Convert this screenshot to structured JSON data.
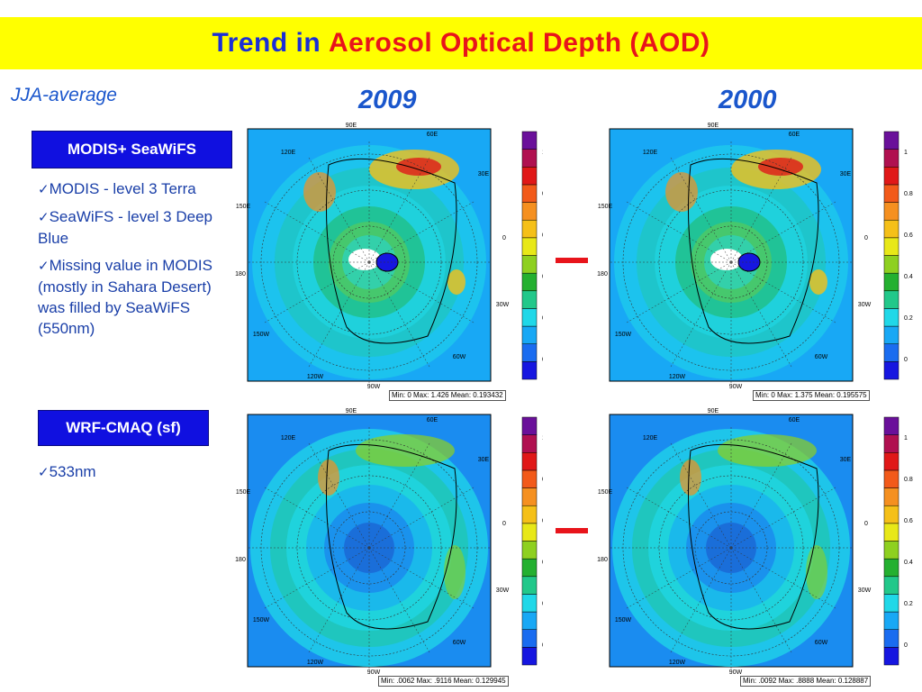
{
  "title": {
    "part1": "Trend in",
    "part2": "Aerosol Optical Depth (AOD)"
  },
  "subtitle": "JJA-average",
  "years": {
    "left": "2009",
    "right": "2000"
  },
  "sections": [
    {
      "heading": "MODIS+ SeaWiFS",
      "bullets": [
        "MODIS - level 3 Terra",
        "SeaWiFS - level 3 Deep Blue",
        "Missing value in MODIS (mostly in Sahara Desert) was filled by SeaWiFS (550nm)"
      ]
    },
    {
      "heading": "WRF-CMAQ (sf)",
      "bullets": [
        "533nm"
      ]
    }
  ],
  "check_symbol": "✓",
  "map_labels": {
    "top": "90E",
    "nw": "120E",
    "w": "150E",
    "left": "180",
    "sw": "150W",
    "bottom_left": "120W",
    "bottom": "90W",
    "se": "60W",
    "e": "30W",
    "right": "0",
    "ne": "30E",
    "top_right": "60E"
  },
  "colorbar": {
    "ticks": [
      "1",
      "0.8",
      "0.6",
      "0.4",
      "0.2",
      "0"
    ],
    "colors": [
      "#1616e0",
      "#1a6cf0",
      "#18a8f5",
      "#20d8e8",
      "#22c88a",
      "#24b030",
      "#8ed020",
      "#e8e818",
      "#f5c018",
      "#f59020",
      "#f25a1a",
      "#e01818",
      "#b01050",
      "#6a109a"
    ]
  },
  "stats": {
    "modis_2009": "Min: 0 Max: 1.426 Mean: 0.193432",
    "modis_2000": "Min: 0 Max: 1.375 Mean: 0.195575",
    "cmaq_2009": "Min: .0062 Max: .9116 Mean: 0.129945",
    "cmaq_2000": "Min: .0092 Max: .8888 Mean: 0.128887"
  }
}
